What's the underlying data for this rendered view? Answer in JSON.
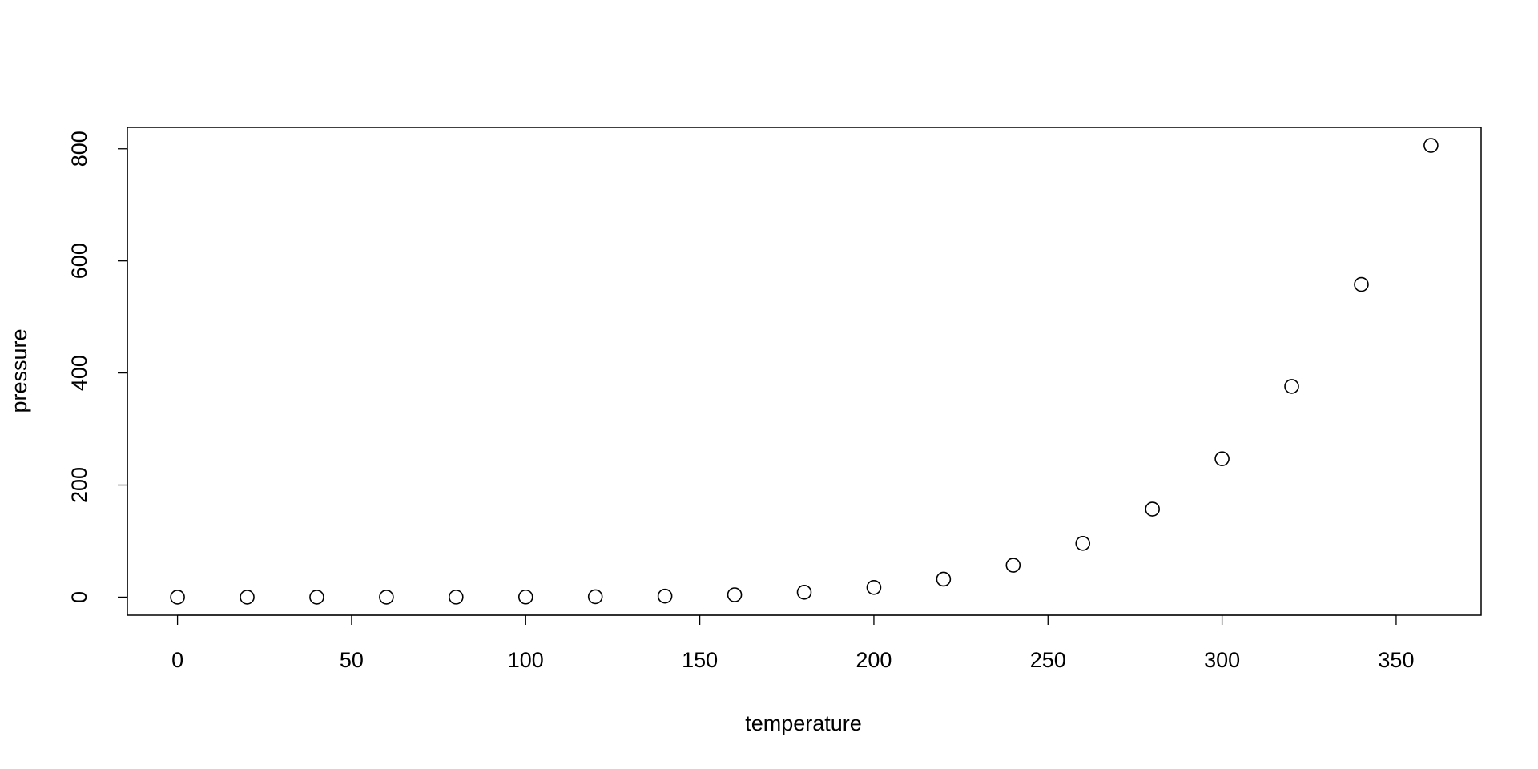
{
  "chart_data": {
    "type": "scatter",
    "xlabel": "temperature",
    "ylabel": "pressure",
    "x": [
      0,
      20,
      40,
      60,
      80,
      100,
      120,
      140,
      160,
      180,
      200,
      220,
      240,
      260,
      280,
      300,
      320,
      340,
      360
    ],
    "values": [
      0.0002,
      0.0012,
      0.006,
      0.03,
      0.09,
      0.27,
      0.75,
      1.85,
      4.2,
      8.8,
      17.3,
      32.1,
      57,
      96,
      157,
      247,
      376,
      558,
      806
    ],
    "color": "#000000",
    "xlim": [
      -14.4,
      374.4
    ],
    "ylim": [
      -32.24,
      838.24
    ],
    "xticks": [
      0,
      50,
      100,
      150,
      200,
      250,
      300,
      350
    ],
    "yticks": [
      0,
      200,
      400,
      600,
      800
    ],
    "grid": false
  }
}
